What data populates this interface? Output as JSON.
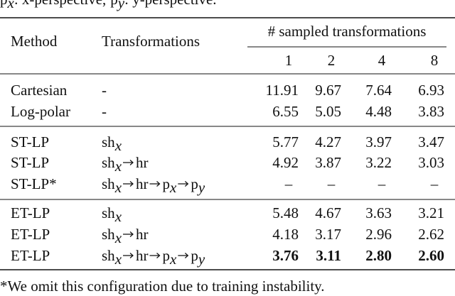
{
  "caption": {
    "items": [
      {
        "symbol": "p",
        "sub": "x",
        "text": ": x-perspective,"
      },
      {
        "symbol": "p",
        "sub": "y",
        "text": ": y-perspective."
      }
    ]
  },
  "table": {
    "headers": {
      "method": "Method",
      "transformations": "Transformations",
      "group": "# sampled transformations",
      "samples": [
        "1",
        "2",
        "4",
        "8"
      ]
    },
    "sections": [
      [
        {
          "method": "Cartesian",
          "steps": [
            {
              "text": "-"
            }
          ],
          "values": [
            "11.91",
            "9.67",
            "7.64",
            "6.93"
          ]
        },
        {
          "method": "Log-polar",
          "steps": [
            {
              "text": "-"
            }
          ],
          "values": [
            "6.55",
            "5.05",
            "4.48",
            "3.83"
          ]
        }
      ],
      [
        {
          "method": "ST-LP",
          "steps": [
            {
              "text": "sh",
              "sub": "x"
            }
          ],
          "values": [
            "5.77",
            "4.27",
            "3.97",
            "3.47"
          ]
        },
        {
          "method": "ST-LP",
          "steps": [
            {
              "text": "sh",
              "sub": "x"
            },
            {
              "text": "hr"
            }
          ],
          "values": [
            "4.92",
            "3.87",
            "3.22",
            "3.03"
          ]
        },
        {
          "method": "ST-LP*",
          "steps": [
            {
              "text": "sh",
              "sub": "x"
            },
            {
              "text": "hr"
            },
            {
              "text": "p",
              "sub": "x"
            },
            {
              "text": "p",
              "sub": "y"
            }
          ],
          "values": [
            "–",
            "–",
            "–",
            "–"
          ]
        }
      ],
      [
        {
          "method": "ET-LP",
          "steps": [
            {
              "text": "sh",
              "sub": "x"
            }
          ],
          "values": [
            "5.48",
            "4.67",
            "3.63",
            "3.21"
          ]
        },
        {
          "method": "ET-LP",
          "steps": [
            {
              "text": "sh",
              "sub": "x"
            },
            {
              "text": "hr"
            }
          ],
          "values": [
            "4.18",
            "3.17",
            "2.96",
            "2.62"
          ]
        },
        {
          "method": "ET-LP",
          "steps": [
            {
              "text": "sh",
              "sub": "x"
            },
            {
              "text": "hr"
            },
            {
              "text": "p",
              "sub": "x"
            },
            {
              "text": "p",
              "sub": "y"
            }
          ],
          "values": [
            "3.76",
            "3.11",
            "2.80",
            "2.60"
          ],
          "bold": true
        }
      ]
    ]
  },
  "footnote": "*We omit this configuration due to training instability."
}
